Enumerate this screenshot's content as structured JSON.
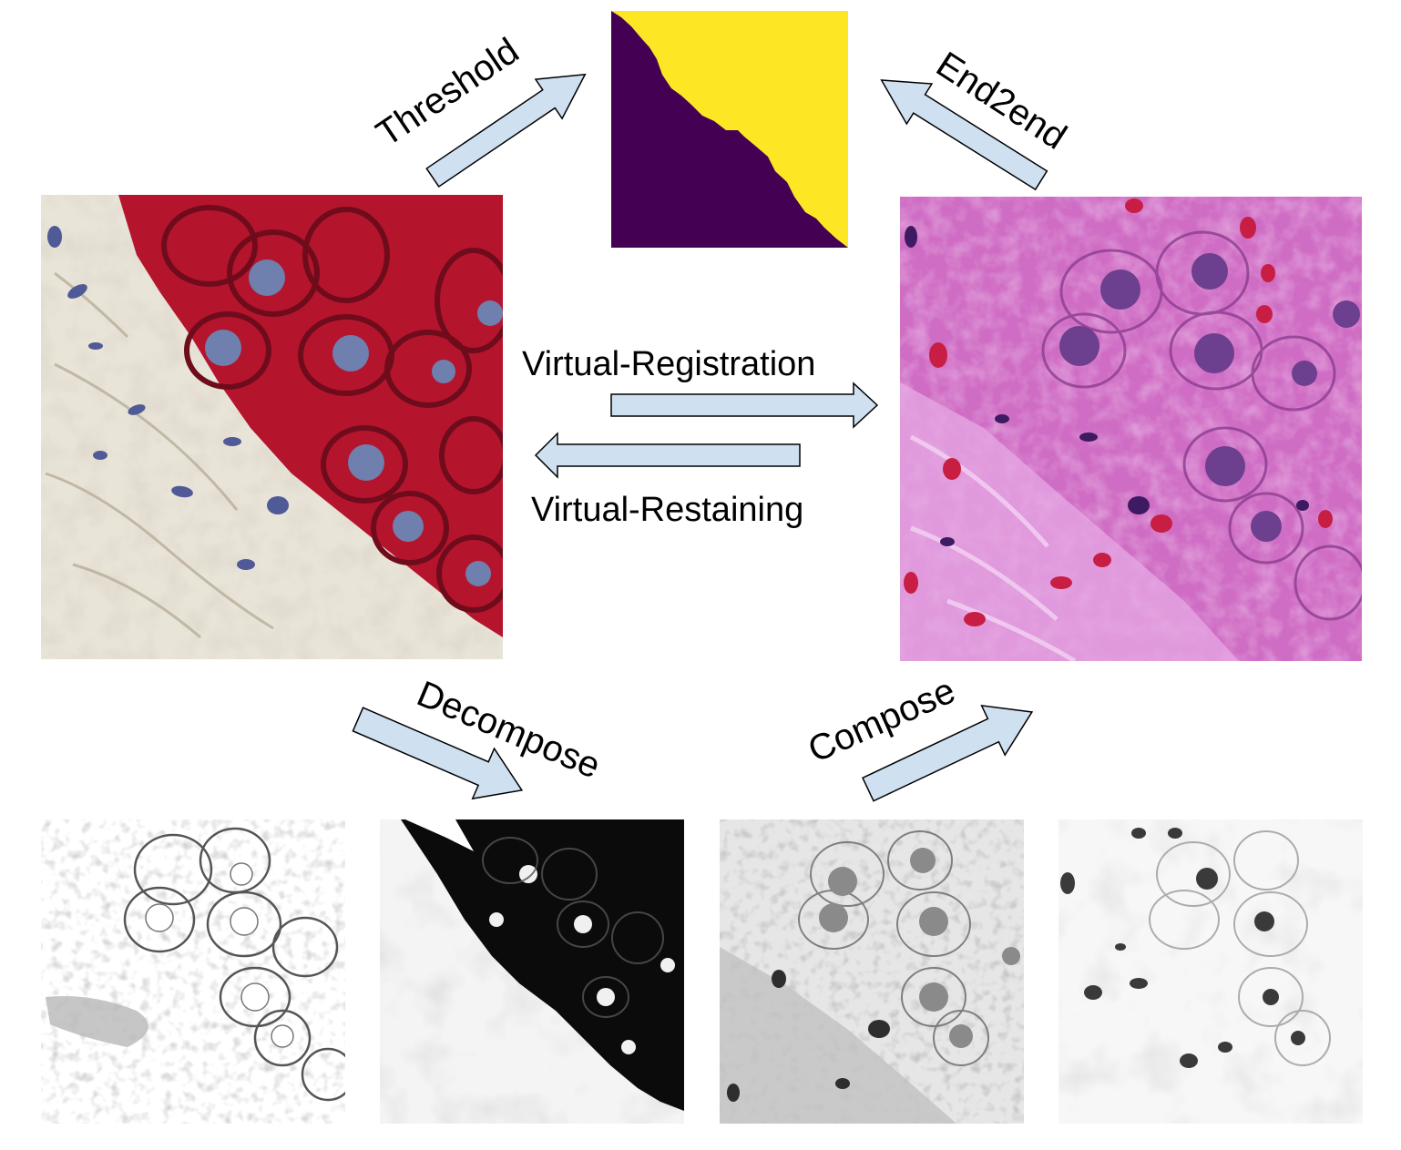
{
  "labels": {
    "threshold": "Threshold",
    "end2end": "End2end",
    "virtual_registration": "Virtual-Registration",
    "virtual_restaining": "Virtual-Restaining",
    "decompose": "Decompose",
    "compose": "Compose"
  },
  "colors": {
    "arrow_fill": "#cfe0f1",
    "arrow_stroke": "#000000",
    "mask_dark": "#440154",
    "mask_light": "#fde725",
    "ihc_background": "#e9e4d8",
    "ihc_membrane": "#b5142d",
    "ihc_nucleus": "#6f7fae",
    "he_background": "#cf6cc4",
    "he_rbc": "#c81e43",
    "he_nucleus": "#6c3f8f"
  },
  "icons": {
    "ihc_panel": "ihc-stained-tissue-image",
    "he_panel": "he-stained-tissue-image",
    "mask_panel": "segmentation-mask-image"
  }
}
